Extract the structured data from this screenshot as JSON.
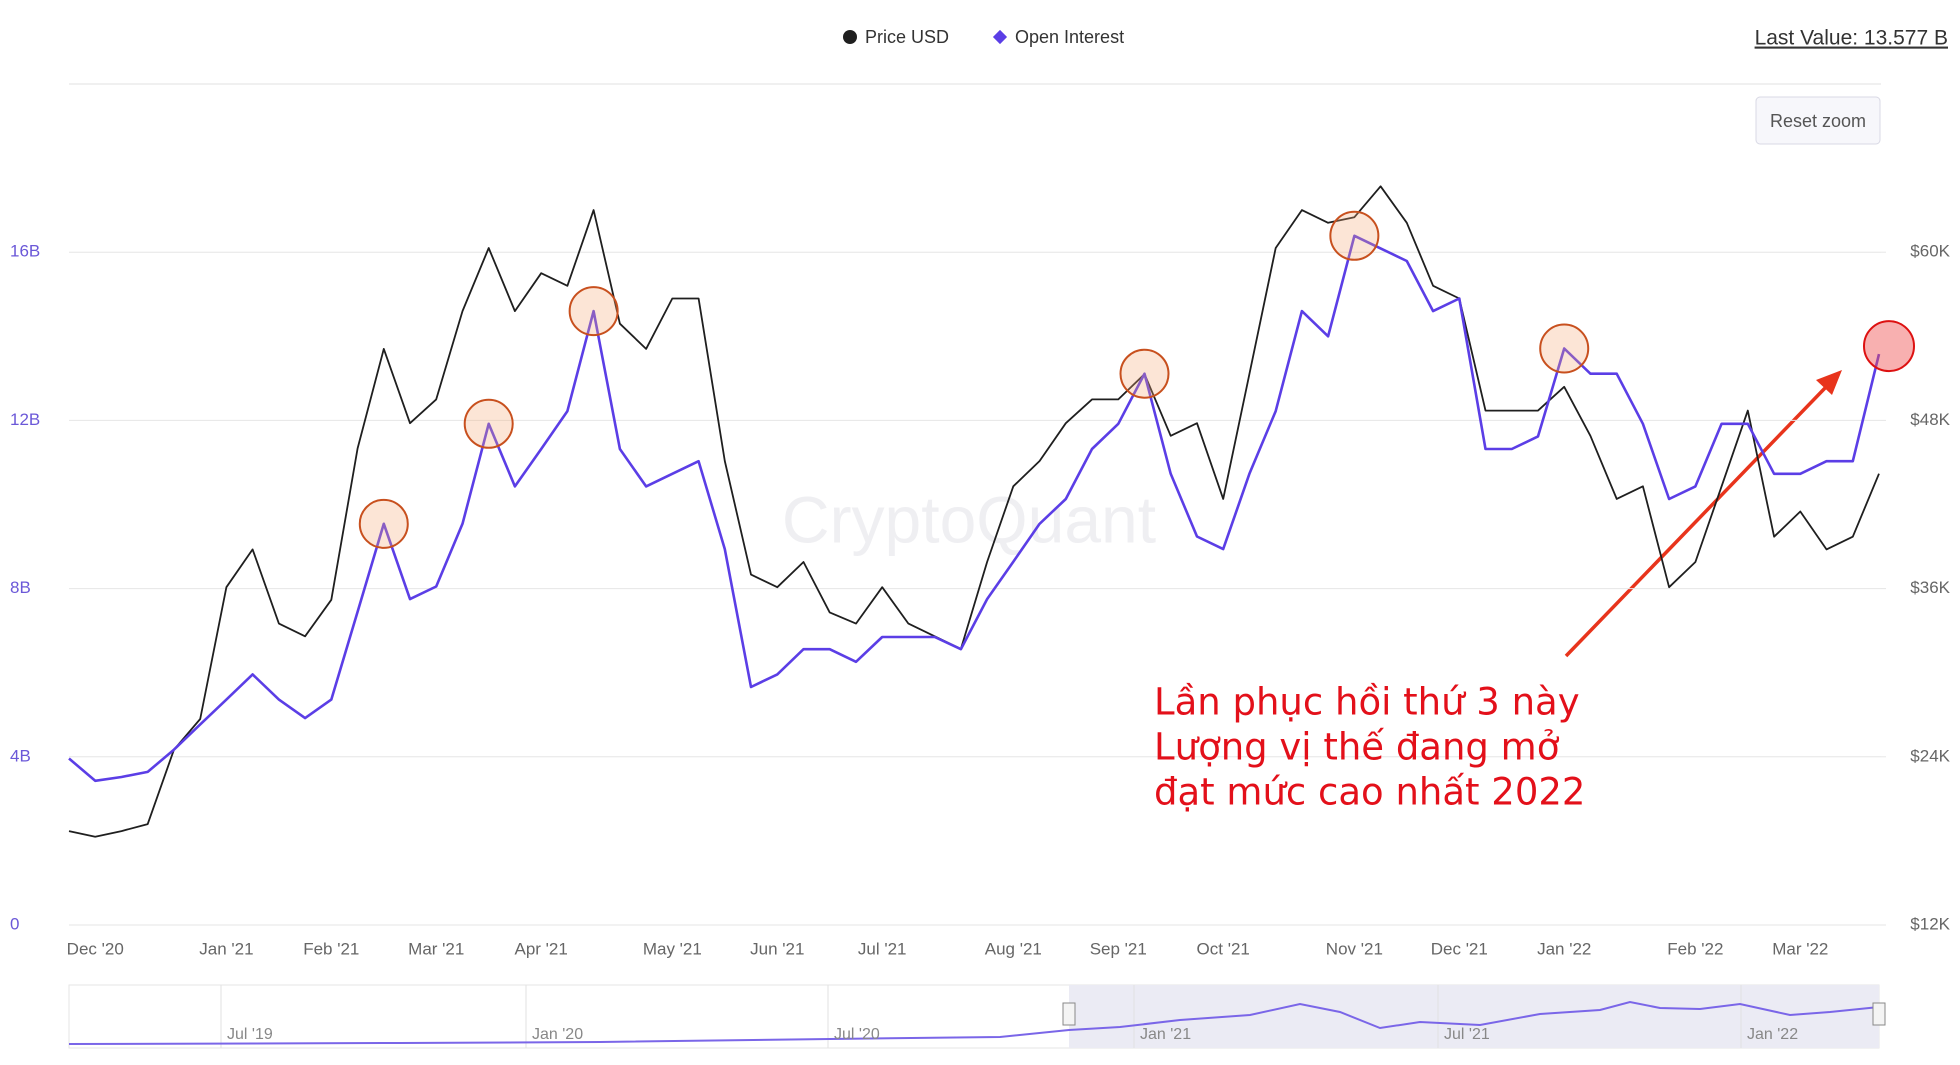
{
  "chart_data": {
    "type": "line",
    "last_value": "Last Value: 13.577 B",
    "reset_zoom": "Reset zoom",
    "watermark": "CryptoQuant",
    "annotation": [
      "Lần phục hồi thứ 3 này",
      "Lượng vị thế đang mở",
      "đạt mức cao nhất 2022"
    ],
    "categories": [
      null,
      "Dec '20",
      null,
      null,
      null,
      null,
      "Jan '21",
      null,
      null,
      null,
      "Feb '21",
      null,
      null,
      null,
      "Mar '21",
      null,
      null,
      null,
      "Apr '21",
      null,
      null,
      null,
      null,
      "May '21",
      null,
      null,
      null,
      "Jun '21",
      null,
      null,
      null,
      "Jul '21",
      null,
      null,
      null,
      null,
      "Aug '21",
      null,
      null,
      null,
      "Sep '21",
      null,
      null,
      null,
      "Oct '21",
      null,
      null,
      null,
      null,
      "Nov '21",
      null,
      null,
      null,
      "Dec '21",
      null,
      null,
      null,
      "Jan '22",
      null,
      null,
      null,
      null,
      "Feb '22",
      null,
      null,
      null,
      "Mar '22",
      null,
      null,
      null
    ],
    "series": [
      {
        "name": "Price USD",
        "color": "#1f1f1f",
        "axis": "y2",
        "values": [
          18700,
          18300,
          18700,
          19200,
          24500,
          26700,
          36100,
          38800,
          33500,
          32600,
          35200,
          46000,
          53100,
          47800,
          49500,
          55800,
          60300,
          55800,
          58500,
          57600,
          63000,
          54900,
          53100,
          56700,
          56700,
          45100,
          37000,
          36100,
          37900,
          34300,
          33500,
          36100,
          33500,
          32600,
          31700,
          37900,
          43300,
          45100,
          47800,
          49500,
          49500,
          51300,
          46900,
          47800,
          42400,
          51300,
          60300,
          63000,
          62100,
          62500,
          64700,
          62100,
          57600,
          56700,
          48700,
          48700,
          48700,
          50400,
          46900,
          42400,
          43300,
          36100,
          37900,
          43300,
          48700,
          39700,
          41500,
          38800,
          39700,
          44200
        ]
      },
      {
        "name": "Open Interest",
        "color": "#5b3ee6",
        "values": [
          3.96,
          3.43,
          3.52,
          3.64,
          4.17,
          4.77,
          5.36,
          5.96,
          5.36,
          4.92,
          5.36,
          7.45,
          9.54,
          7.75,
          8.05,
          9.54,
          11.92,
          10.43,
          11.32,
          12.22,
          14.6,
          11.32,
          10.43,
          10.73,
          11.03,
          8.94,
          5.66,
          5.96,
          6.56,
          6.56,
          6.26,
          6.85,
          6.85,
          6.85,
          6.56,
          7.75,
          8.64,
          9.54,
          10.13,
          11.32,
          11.92,
          13.11,
          10.73,
          9.24,
          8.94,
          10.73,
          12.22,
          14.6,
          14.0,
          16.39,
          16.09,
          15.79,
          14.6,
          14.9,
          11.32,
          11.32,
          11.62,
          13.71,
          13.11,
          13.11,
          11.92,
          10.13,
          10.43,
          11.92,
          11.92,
          10.73,
          10.73,
          11.03,
          11.03,
          13.577
        ]
      }
    ],
    "ylim": [
      0,
      20
    ],
    "yticks": [
      0,
      {
        "value": 4,
        "label": "4B"
      },
      {
        "value": 8,
        "label": "8B"
      },
      {
        "value": 12,
        "label": "12B"
      },
      {
        "value": 16,
        "label": "16B"
      }
    ],
    "y2lim": [
      12000,
      72000
    ],
    "y2ticks": [
      {
        "value": 12000,
        "label": "$12K"
      },
      {
        "value": 24000,
        "label": "$24K"
      },
      {
        "value": 36000,
        "label": "$36K"
      },
      {
        "value": 48000,
        "label": "$48K"
      },
      {
        "value": 60000,
        "label": "$60K"
      }
    ],
    "grid": true,
    "navigator_labels": [
      "Jul '19",
      "Jan '20",
      "Jul '20",
      "Jan '21",
      "Jul '21",
      "Jan '22"
    ]
  }
}
